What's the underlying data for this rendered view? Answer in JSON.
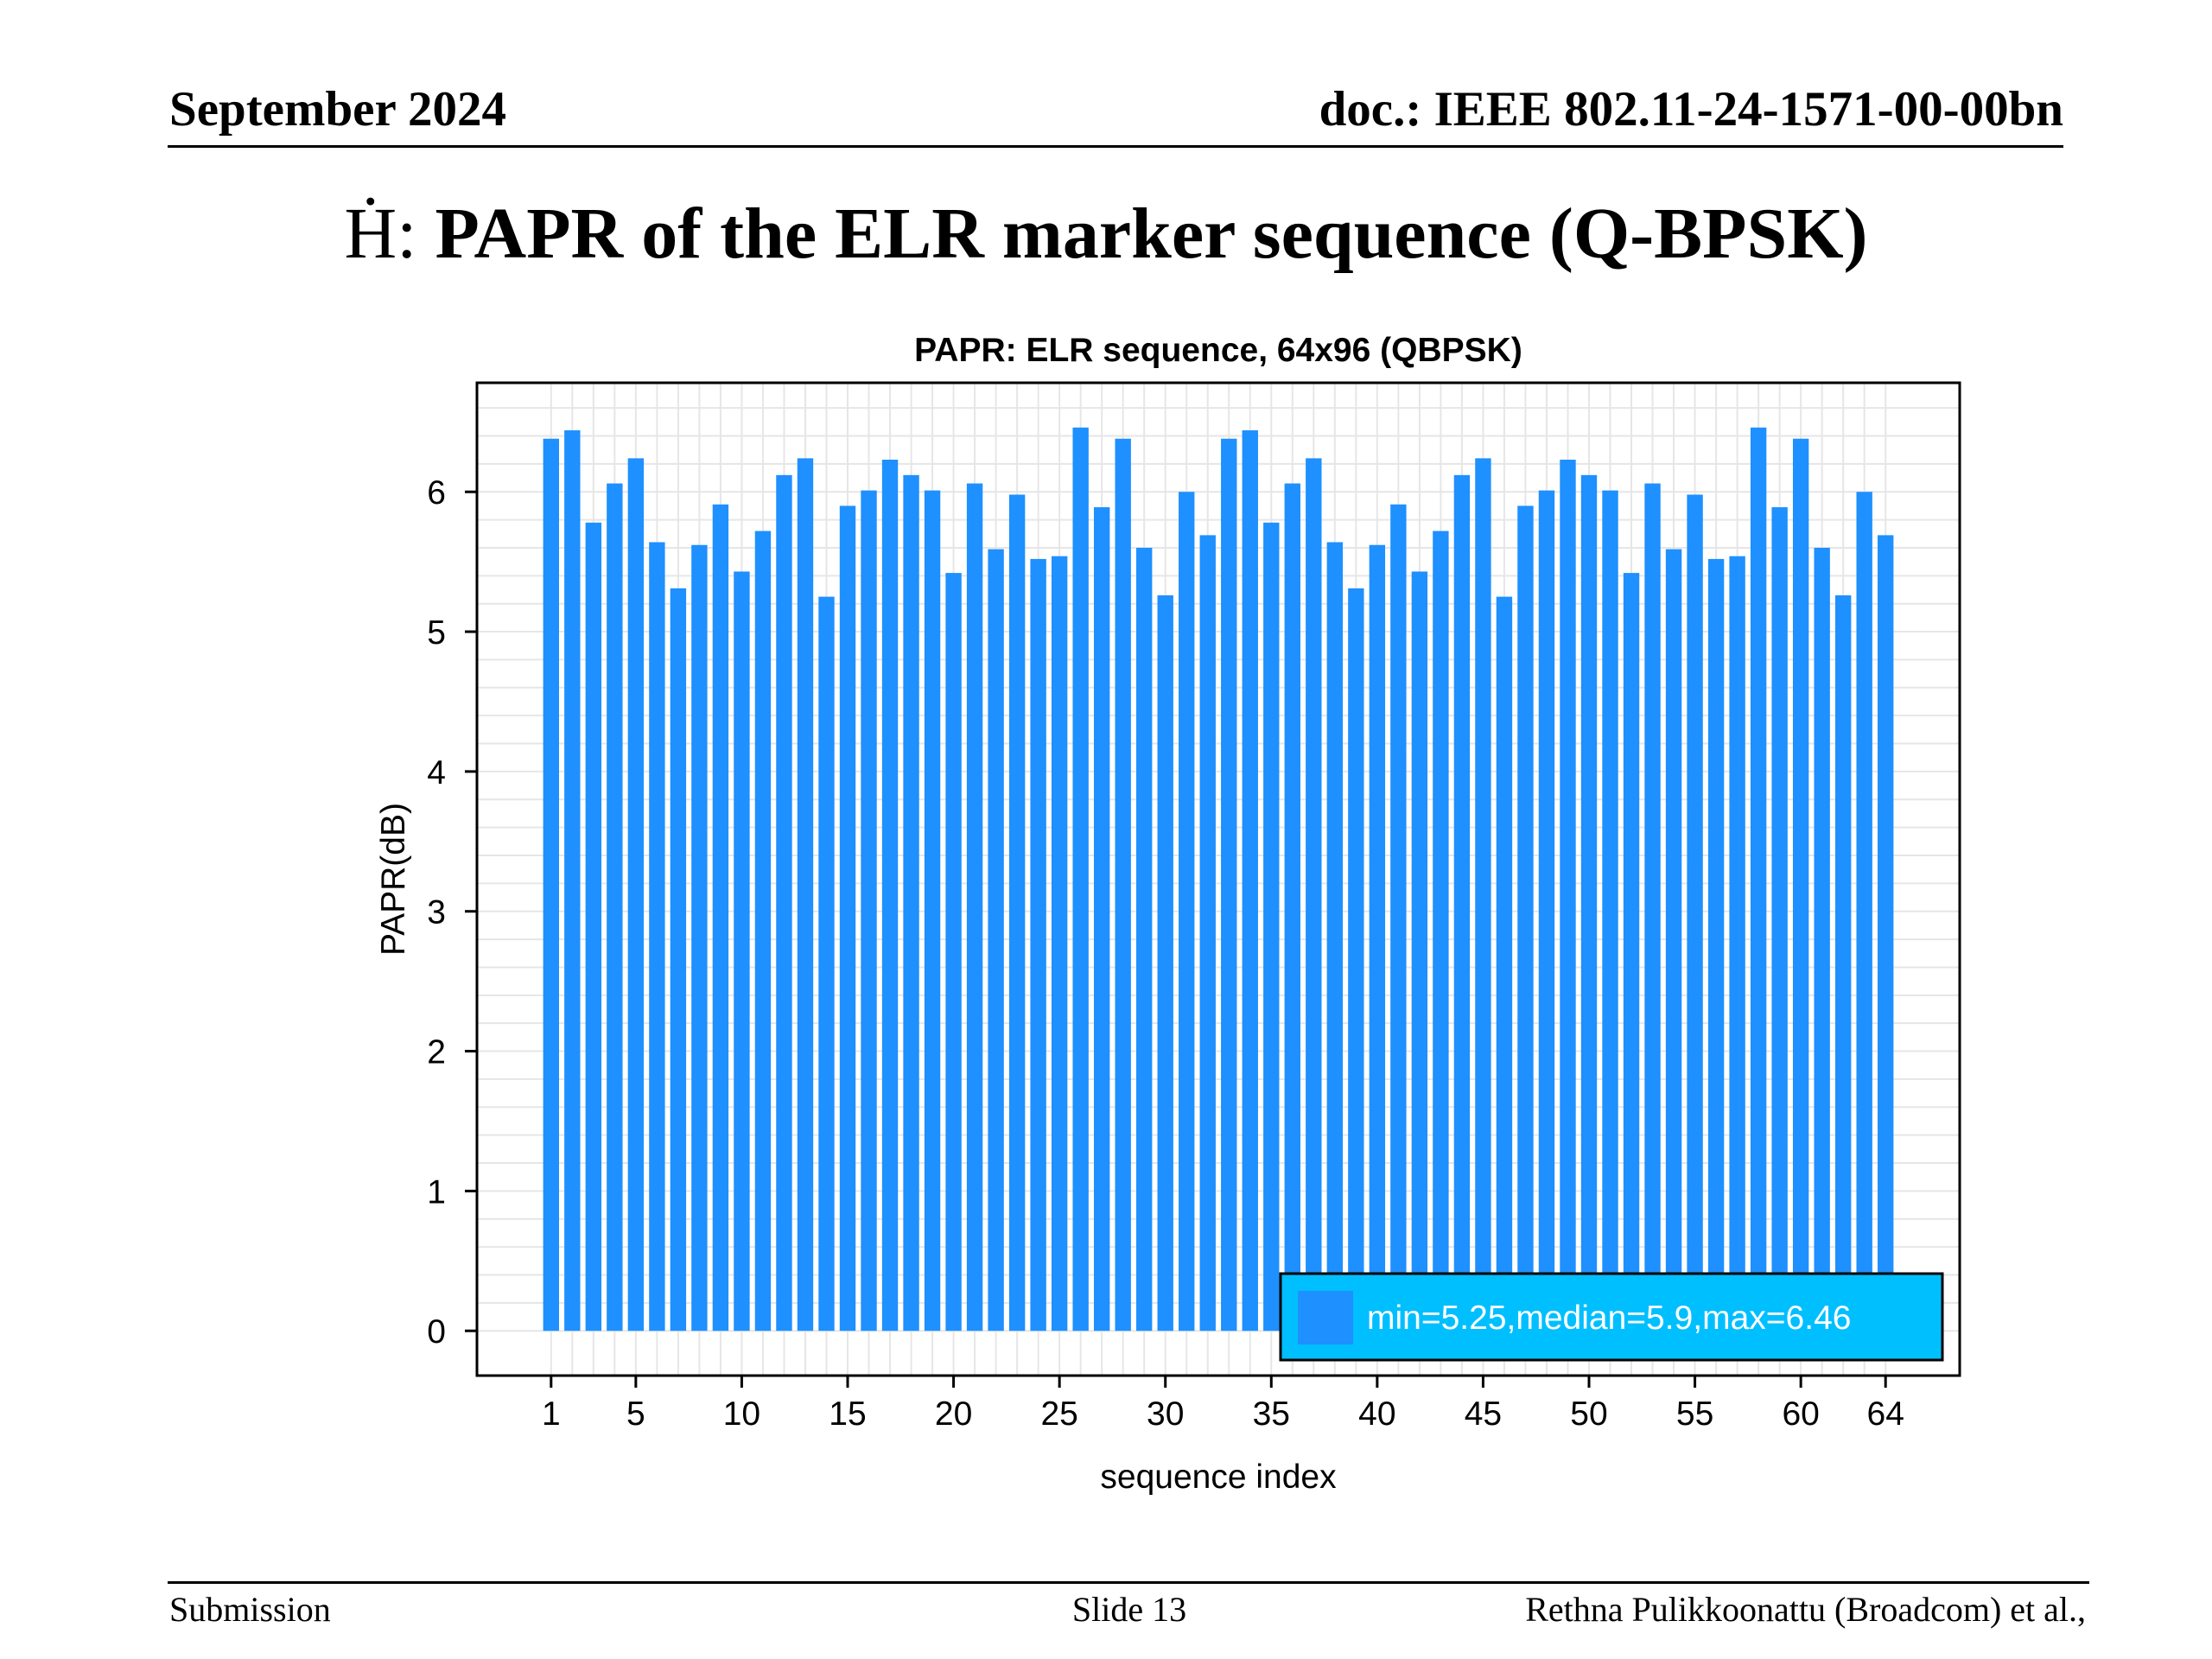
{
  "header": {
    "left": "September 2024",
    "right": "doc.: IEEE 802.11-24-1571-00-00bn"
  },
  "slide": {
    "title_prefix": "Ḣ:",
    "title": "PAPR of the ELR marker sequence (Q-BPSK)"
  },
  "footer": {
    "left": "Submission",
    "center": "Slide 13",
    "right": "Rethna Pulikkoonattu (Broadcom) et al.,"
  },
  "colors": {
    "bar": "#1e90ff",
    "legend_bg": "#00bfff",
    "legend_swatch": "#1e90ff",
    "legend_text": "#ffffff",
    "grid": "#e6e6e6"
  },
  "chart_data": {
    "type": "bar",
    "title": "PAPR:  ELR sequence, 64x96 (QBPSK)",
    "xlabel": "sequence index",
    "ylabel": "PAPR(dB)",
    "x": [
      1,
      2,
      3,
      4,
      5,
      6,
      7,
      8,
      9,
      10,
      11,
      12,
      13,
      14,
      15,
      16,
      17,
      18,
      19,
      20,
      21,
      22,
      23,
      24,
      25,
      26,
      27,
      28,
      29,
      30,
      31,
      32,
      33,
      34,
      35,
      36,
      37,
      38,
      39,
      40,
      41,
      42,
      43,
      44,
      45,
      46,
      47,
      48,
      49,
      50,
      51,
      52,
      53,
      54,
      55,
      56,
      57,
      58,
      59,
      60,
      61,
      62,
      63,
      64
    ],
    "values": [
      6.38,
      6.44,
      5.78,
      6.06,
      6.24,
      5.64,
      5.31,
      5.62,
      5.91,
      5.43,
      5.72,
      6.12,
      6.24,
      5.25,
      5.9,
      6.01,
      6.23,
      6.12,
      6.01,
      5.42,
      6.06,
      5.59,
      5.98,
      5.52,
      5.54,
      6.46,
      5.89,
      6.38,
      5.6,
      5.26,
      6.0,
      5.69,
      6.38,
      6.44,
      5.78,
      6.06,
      6.24,
      5.64,
      5.31,
      5.62,
      5.91,
      5.43,
      5.72,
      6.12,
      6.24,
      5.25,
      5.9,
      6.01,
      6.23,
      6.12,
      6.01,
      5.42,
      6.06,
      5.59,
      5.98,
      5.52,
      5.54,
      6.46,
      5.89,
      6.38,
      5.6,
      5.26,
      6.0,
      5.69
    ],
    "xticks": [
      1,
      5,
      10,
      15,
      20,
      25,
      30,
      35,
      40,
      45,
      50,
      55,
      60,
      64
    ],
    "yticks": [
      0,
      1,
      2,
      3,
      4,
      5,
      6
    ],
    "xlim": [
      -2.5,
      67.5
    ],
    "ylim": [
      -0.32,
      6.78
    ],
    "grid": true,
    "legend": {
      "text": "min=5.25,median=5.9,max=6.46",
      "position": "bottom-right"
    }
  }
}
